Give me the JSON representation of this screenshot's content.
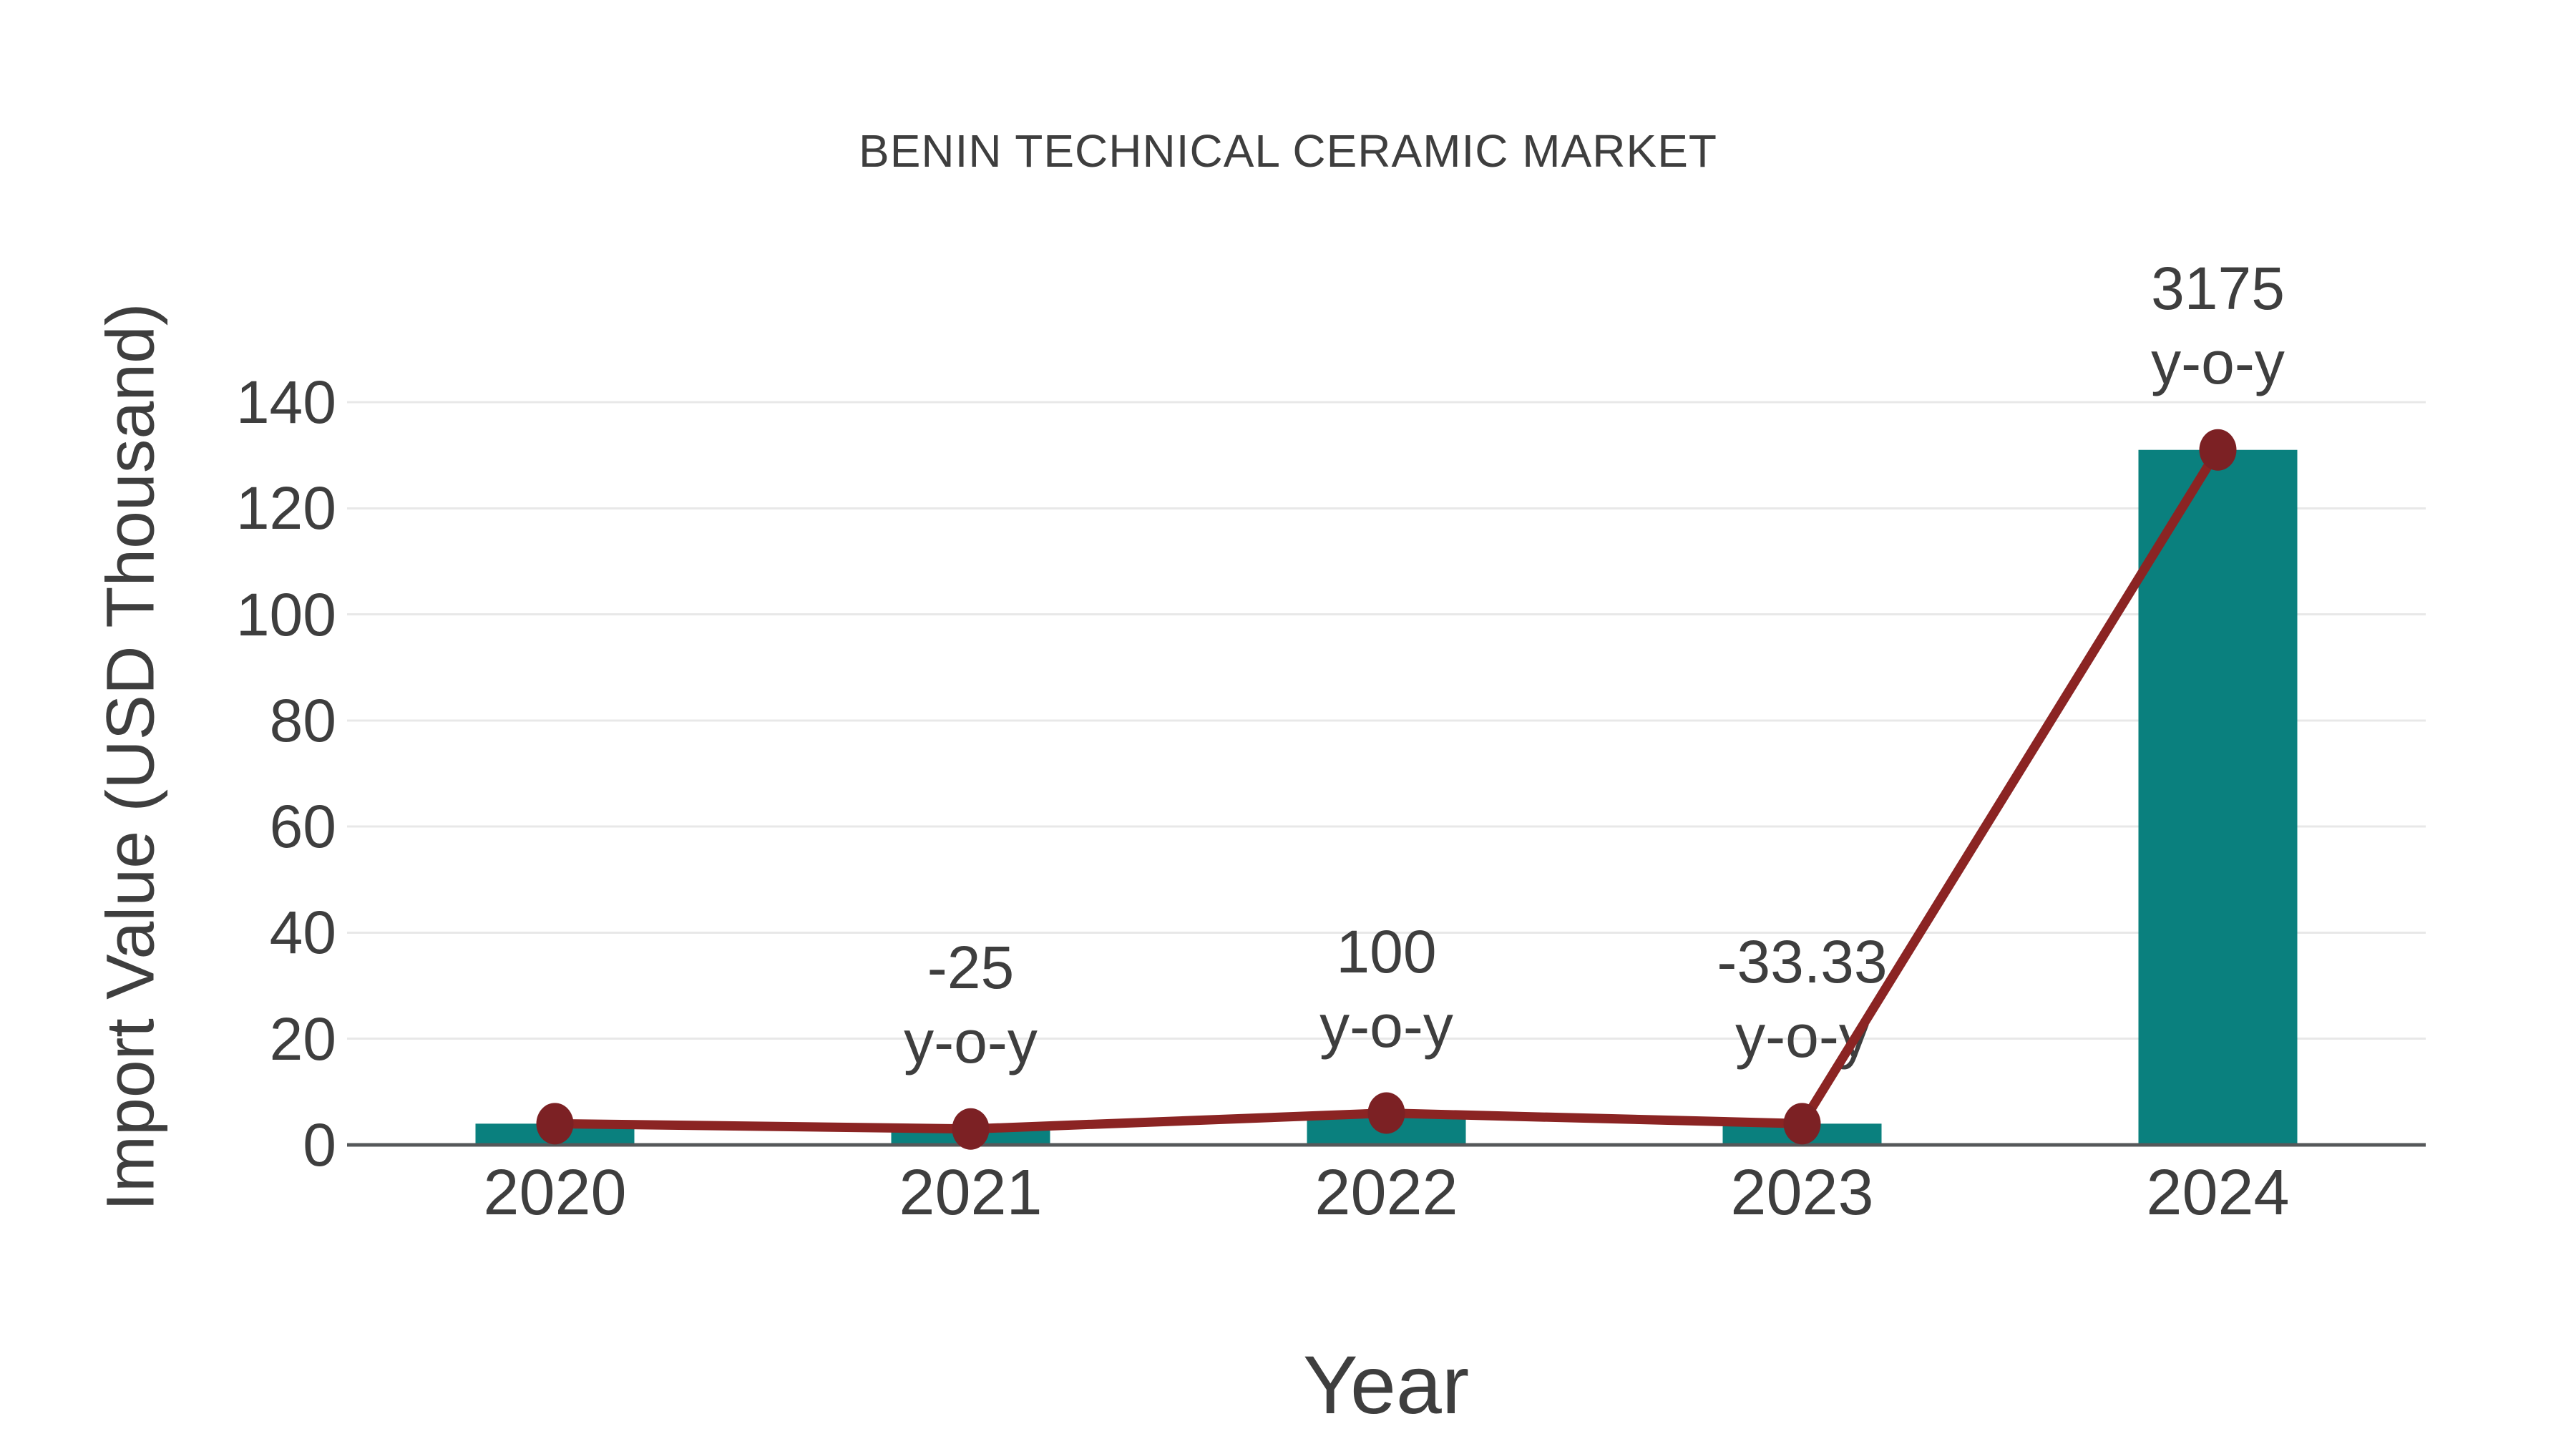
{
  "chart_data": {
    "type": "bar",
    "subtype": "bar-with-line-overlay",
    "title": "BENIN TECHNICAL CERAMIC MARKET",
    "xlabel": "Year",
    "ylabel": "Import Value (USD Thousand)",
    "categories": [
      "2020",
      "2021",
      "2022",
      "2023",
      "2024"
    ],
    "series": [
      {
        "name": "import-value-bars",
        "type": "bar",
        "values": [
          4,
          3,
          6,
          4,
          131
        ]
      },
      {
        "name": "import-value-line",
        "type": "line",
        "values": [
          4,
          3,
          6,
          4,
          131
        ]
      }
    ],
    "annotations": [
      {
        "category": "2021",
        "lines": [
          "-25",
          "y-o-y"
        ]
      },
      {
        "category": "2022",
        "lines": [
          "100",
          "y-o-y"
        ]
      },
      {
        "category": "2023",
        "lines": [
          "-33.33",
          "y-o-y"
        ]
      },
      {
        "category": "2024",
        "lines": [
          "3175",
          "y-o-y"
        ]
      }
    ],
    "yticks": [
      0,
      20,
      40,
      60,
      80,
      100,
      120,
      140
    ],
    "ylim": [
      0,
      140
    ],
    "grid": "horizontal",
    "legend": "none",
    "colors": {
      "bar": "#0A807E",
      "line": "#8B2423",
      "marker": "#7C2124",
      "grid": "#E8E8E8",
      "axis_line": "#55585A",
      "text": "#3E3E3E",
      "background": "#FFFFFF"
    }
  }
}
